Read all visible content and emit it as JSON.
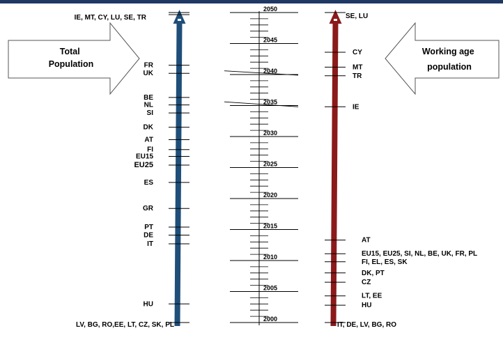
{
  "colors": {
    "top_bar": "#1f3864",
    "total_arrow": "#1f4e79",
    "working_arrow": "#8b1a1a",
    "total_label": "#00008b",
    "working_label": "#7f4f00"
  },
  "callouts": {
    "total": "Total Population",
    "working": "Working age population"
  },
  "axis": {
    "min": 2000,
    "max": 2050,
    "major_labels": [
      {
        "value": 2000,
        "label": "2000"
      },
      {
        "value": 2005,
        "label": "2005"
      },
      {
        "value": 2010,
        "label": "2010"
      },
      {
        "value": 2015,
        "label": "2015"
      },
      {
        "value": 2020,
        "label": "2020"
      },
      {
        "value": 2025,
        "label": "2025"
      },
      {
        "value": 2030,
        "label": "2030"
      },
      {
        "value": 2035,
        "label": "2035"
      },
      {
        "value": 2040,
        "label": "2040"
      },
      {
        "value": 2045,
        "label": "2045"
      },
      {
        "value": 2050,
        "label": "2050"
      }
    ]
  },
  "total_population": {
    "markers": [
      {
        "year": 2050,
        "label": "IE, MT, CY, LU, SE, TR"
      },
      {
        "year": 2041.5,
        "label": "FR"
      },
      {
        "year": 2040.2,
        "label": "UK"
      },
      {
        "year": 2036.3,
        "label": "BE"
      },
      {
        "year": 2035.1,
        "label": "NL"
      },
      {
        "year": 2033.8,
        "label": "SI"
      },
      {
        "year": 2031.5,
        "label": "DK"
      },
      {
        "year": 2029.5,
        "label": "AT"
      },
      {
        "year": 2027.9,
        "label": "FI"
      },
      {
        "year": 2026.8,
        "label": "EU15"
      },
      {
        "year": 2025.4,
        "label": "EU25"
      },
      {
        "year": 2022.6,
        "label": "ES"
      },
      {
        "year": 2018.4,
        "label": "GR"
      },
      {
        "year": 2015.4,
        "label": "PT"
      },
      {
        "year": 2014.1,
        "label": "DE"
      },
      {
        "year": 2012.7,
        "label": "IT"
      },
      {
        "year": 2003.0,
        "label": "HU"
      },
      {
        "year": 2000,
        "label": "LV, BG, RO,EE, LT, CZ, SK, PL"
      }
    ]
  },
  "working_age_population": {
    "markers": [
      {
        "year": 2050,
        "label": "SE, LU"
      },
      {
        "year": 2043.6,
        "label": "CY"
      },
      {
        "year": 2041.2,
        "label": "MT"
      },
      {
        "year": 2039.8,
        "label": "TR"
      },
      {
        "year": 2034.8,
        "label": "IE"
      },
      {
        "year": 2013.3,
        "label": "AT"
      },
      {
        "year": 2011.1,
        "label": "EU15, EU25, SI, NL, BE, UK, FR, PL"
      },
      {
        "year": 2009.8,
        "label": "FI, EL, ES, SK"
      },
      {
        "year": 2008.0,
        "label": "DK, PT"
      },
      {
        "year": 2006.5,
        "label": "CZ"
      },
      {
        "year": 2004.3,
        "label": "LT, EE"
      },
      {
        "year": 2002.8,
        "label": "HU"
      },
      {
        "year": 2000,
        "label": "IT, DE, LV, BG, RO"
      }
    ]
  }
}
